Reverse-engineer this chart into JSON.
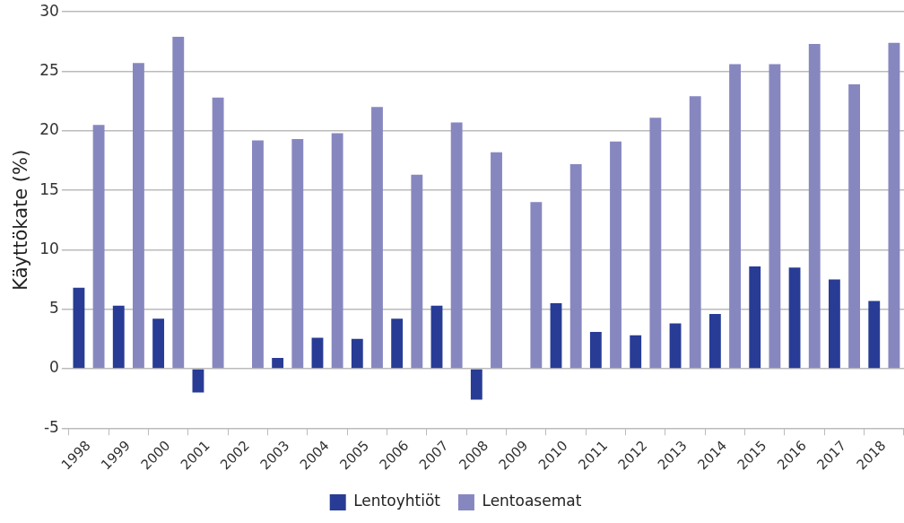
{
  "chart_data": {
    "type": "bar",
    "ylabel": "Käyttökate (%)",
    "categories": [
      "1998",
      "1999",
      "2000",
      "2001",
      "2002",
      "2003",
      "2004",
      "2005",
      "2006",
      "2007",
      "2008",
      "2009",
      "2010",
      "2011",
      "2012",
      "2013",
      "2014",
      "2015",
      "2016",
      "2017",
      "2018"
    ],
    "series": [
      {
        "name": "Lentoyhtiöt",
        "color": "#283c96",
        "values": [
          6.8,
          5.3,
          4.2,
          -2.0,
          null,
          0.9,
          2.6,
          2.5,
          4.2,
          5.3,
          -2.6,
          null,
          5.5,
          3.1,
          2.8,
          3.8,
          4.6,
          8.6,
          8.5,
          7.5,
          5.7
        ]
      },
      {
        "name": "Lentoasemat",
        "color": "#8787c0",
        "values": [
          20.5,
          25.7,
          27.9,
          22.8,
          19.2,
          19.3,
          19.8,
          22.0,
          16.3,
          20.7,
          18.2,
          14.0,
          17.2,
          19.1,
          21.1,
          22.9,
          25.6,
          25.6,
          27.3,
          23.9,
          27.4
        ]
      }
    ],
    "ylim": [
      -5,
      30
    ],
    "yticks": [
      -5,
      0,
      5,
      10,
      15,
      20,
      25,
      30
    ],
    "grid": "y",
    "legend": "bottom"
  }
}
